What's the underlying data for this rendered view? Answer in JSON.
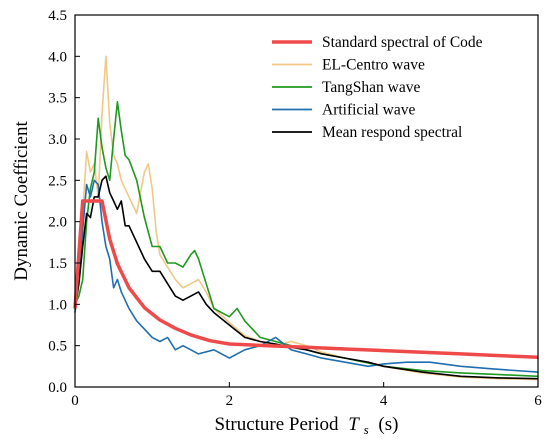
{
  "chart_data": {
    "type": "line",
    "title": "",
    "xlabel": "Structure Period",
    "xlabel_symbol": "T",
    "xlabel_subscript": "s",
    "xlabel_unit": "(s)",
    "ylabel": "Dynamic Coefficient",
    "xlim": [
      0,
      6
    ],
    "ylim": [
      0,
      4.5
    ],
    "x_ticks": [
      0,
      2,
      4,
      6
    ],
    "x_tick_labels": [
      "0",
      "2",
      "4",
      "6"
    ],
    "y_ticks": [
      0,
      0.5,
      1.0,
      1.5,
      2.0,
      2.5,
      3.0,
      3.5,
      4.0,
      4.5
    ],
    "y_tick_labels": [
      "0.0",
      "0.5",
      "1.0",
      "1.5",
      "2.0",
      "2.5",
      "3.0",
      "3.5",
      "4.0",
      "4.5"
    ],
    "grid": false,
    "legend_position": "top-right",
    "series": [
      {
        "name": "Standard spectral of Code",
        "color": "#ef4a4a",
        "x": [
          0,
          0.1,
          0.35,
          0.45,
          0.55,
          0.7,
          0.9,
          1.1,
          1.3,
          1.5,
          1.75,
          2.0,
          2.5,
          3.0,
          3.5,
          4.0,
          4.5,
          5.0,
          5.5,
          6.0
        ],
        "y": [
          0.95,
          2.25,
          2.25,
          1.79,
          1.49,
          1.2,
          0.96,
          0.81,
          0.71,
          0.63,
          0.56,
          0.52,
          0.5,
          0.48,
          0.46,
          0.44,
          0.42,
          0.4,
          0.38,
          0.36
        ]
      },
      {
        "name": "EL-Centro wave",
        "color": "#f0c987",
        "x": [
          0,
          0.05,
          0.1,
          0.15,
          0.2,
          0.25,
          0.3,
          0.35,
          0.4,
          0.45,
          0.5,
          0.55,
          0.6,
          0.7,
          0.8,
          0.9,
          0.95,
          1.0,
          1.05,
          1.1,
          1.2,
          1.3,
          1.4,
          1.5,
          1.6,
          1.7,
          1.8,
          2.0,
          2.2,
          2.4,
          2.6,
          2.8,
          3.0,
          3.2,
          3.5,
          4.0,
          4.5,
          5.0,
          5.5,
          6.0
        ],
        "y": [
          0.95,
          1.3,
          2.1,
          2.85,
          2.6,
          2.7,
          2.3,
          3.3,
          4.0,
          3.2,
          2.8,
          2.7,
          2.5,
          2.3,
          2.1,
          2.6,
          2.7,
          2.4,
          1.9,
          1.6,
          1.45,
          1.3,
          1.2,
          1.25,
          1.3,
          1.15,
          0.95,
          0.78,
          0.62,
          0.55,
          0.5,
          0.55,
          0.5,
          0.42,
          0.35,
          0.25,
          0.17,
          0.12,
          0.1,
          0.09
        ]
      },
      {
        "name": "TangShan wave",
        "color": "#1f9a1f",
        "x": [
          0,
          0.05,
          0.1,
          0.15,
          0.2,
          0.25,
          0.3,
          0.35,
          0.4,
          0.45,
          0.5,
          0.55,
          0.6,
          0.65,
          0.7,
          0.8,
          0.9,
          1.0,
          1.1,
          1.2,
          1.3,
          1.4,
          1.5,
          1.55,
          1.6,
          1.7,
          1.8,
          2.0,
          2.1,
          2.2,
          2.4,
          2.6,
          2.8,
          3.0,
          3.2,
          3.5,
          4.0,
          4.5,
          5.0,
          5.5,
          6.0
        ],
        "y": [
          1.0,
          1.1,
          1.3,
          2.0,
          2.4,
          2.6,
          3.25,
          2.9,
          2.65,
          2.5,
          3.0,
          3.45,
          3.1,
          2.8,
          2.75,
          2.5,
          2.05,
          1.7,
          1.7,
          1.5,
          1.5,
          1.45,
          1.6,
          1.65,
          1.55,
          1.25,
          0.95,
          0.85,
          0.95,
          0.8,
          0.6,
          0.55,
          0.5,
          0.45,
          0.4,
          0.35,
          0.25,
          0.2,
          0.17,
          0.15,
          0.13
        ]
      },
      {
        "name": "Artificial wave",
        "color": "#1f6fb0",
        "x": [
          0,
          0.05,
          0.1,
          0.15,
          0.2,
          0.25,
          0.3,
          0.35,
          0.4,
          0.45,
          0.5,
          0.55,
          0.6,
          0.7,
          0.8,
          0.9,
          1.0,
          1.1,
          1.2,
          1.3,
          1.4,
          1.5,
          1.6,
          1.8,
          2.0,
          2.2,
          2.4,
          2.6,
          2.8,
          3.0,
          3.2,
          3.5,
          3.8,
          4.0,
          4.3,
          4.6,
          5.0,
          5.4,
          5.7,
          6.0
        ],
        "y": [
          0.9,
          1.3,
          1.9,
          2.45,
          2.3,
          2.5,
          2.45,
          2.0,
          1.7,
          1.55,
          1.2,
          1.3,
          1.15,
          0.95,
          0.8,
          0.7,
          0.6,
          0.55,
          0.6,
          0.45,
          0.5,
          0.45,
          0.4,
          0.45,
          0.35,
          0.45,
          0.5,
          0.6,
          0.45,
          0.4,
          0.35,
          0.3,
          0.25,
          0.28,
          0.3,
          0.3,
          0.25,
          0.22,
          0.2,
          0.18
        ]
      },
      {
        "name": "Mean respond spectral",
        "color": "#000000",
        "x": [
          0,
          0.05,
          0.1,
          0.15,
          0.2,
          0.25,
          0.3,
          0.35,
          0.4,
          0.45,
          0.5,
          0.55,
          0.6,
          0.65,
          0.7,
          0.8,
          0.9,
          1.0,
          1.1,
          1.2,
          1.3,
          1.4,
          1.5,
          1.6,
          1.7,
          1.8,
          2.0,
          2.2,
          2.4,
          2.6,
          2.8,
          3.0,
          3.2,
          3.5,
          3.8,
          4.0,
          4.5,
          5.0,
          5.5,
          6.0
        ],
        "y": [
          0.95,
          1.25,
          1.7,
          2.1,
          2.05,
          2.3,
          2.3,
          2.5,
          2.55,
          2.35,
          2.25,
          2.15,
          2.25,
          1.95,
          1.95,
          1.75,
          1.55,
          1.4,
          1.4,
          1.25,
          1.1,
          1.05,
          1.1,
          1.15,
          1.0,
          0.9,
          0.75,
          0.6,
          0.55,
          0.52,
          0.48,
          0.45,
          0.4,
          0.35,
          0.3,
          0.25,
          0.18,
          0.13,
          0.11,
          0.1
        ]
      }
    ]
  }
}
